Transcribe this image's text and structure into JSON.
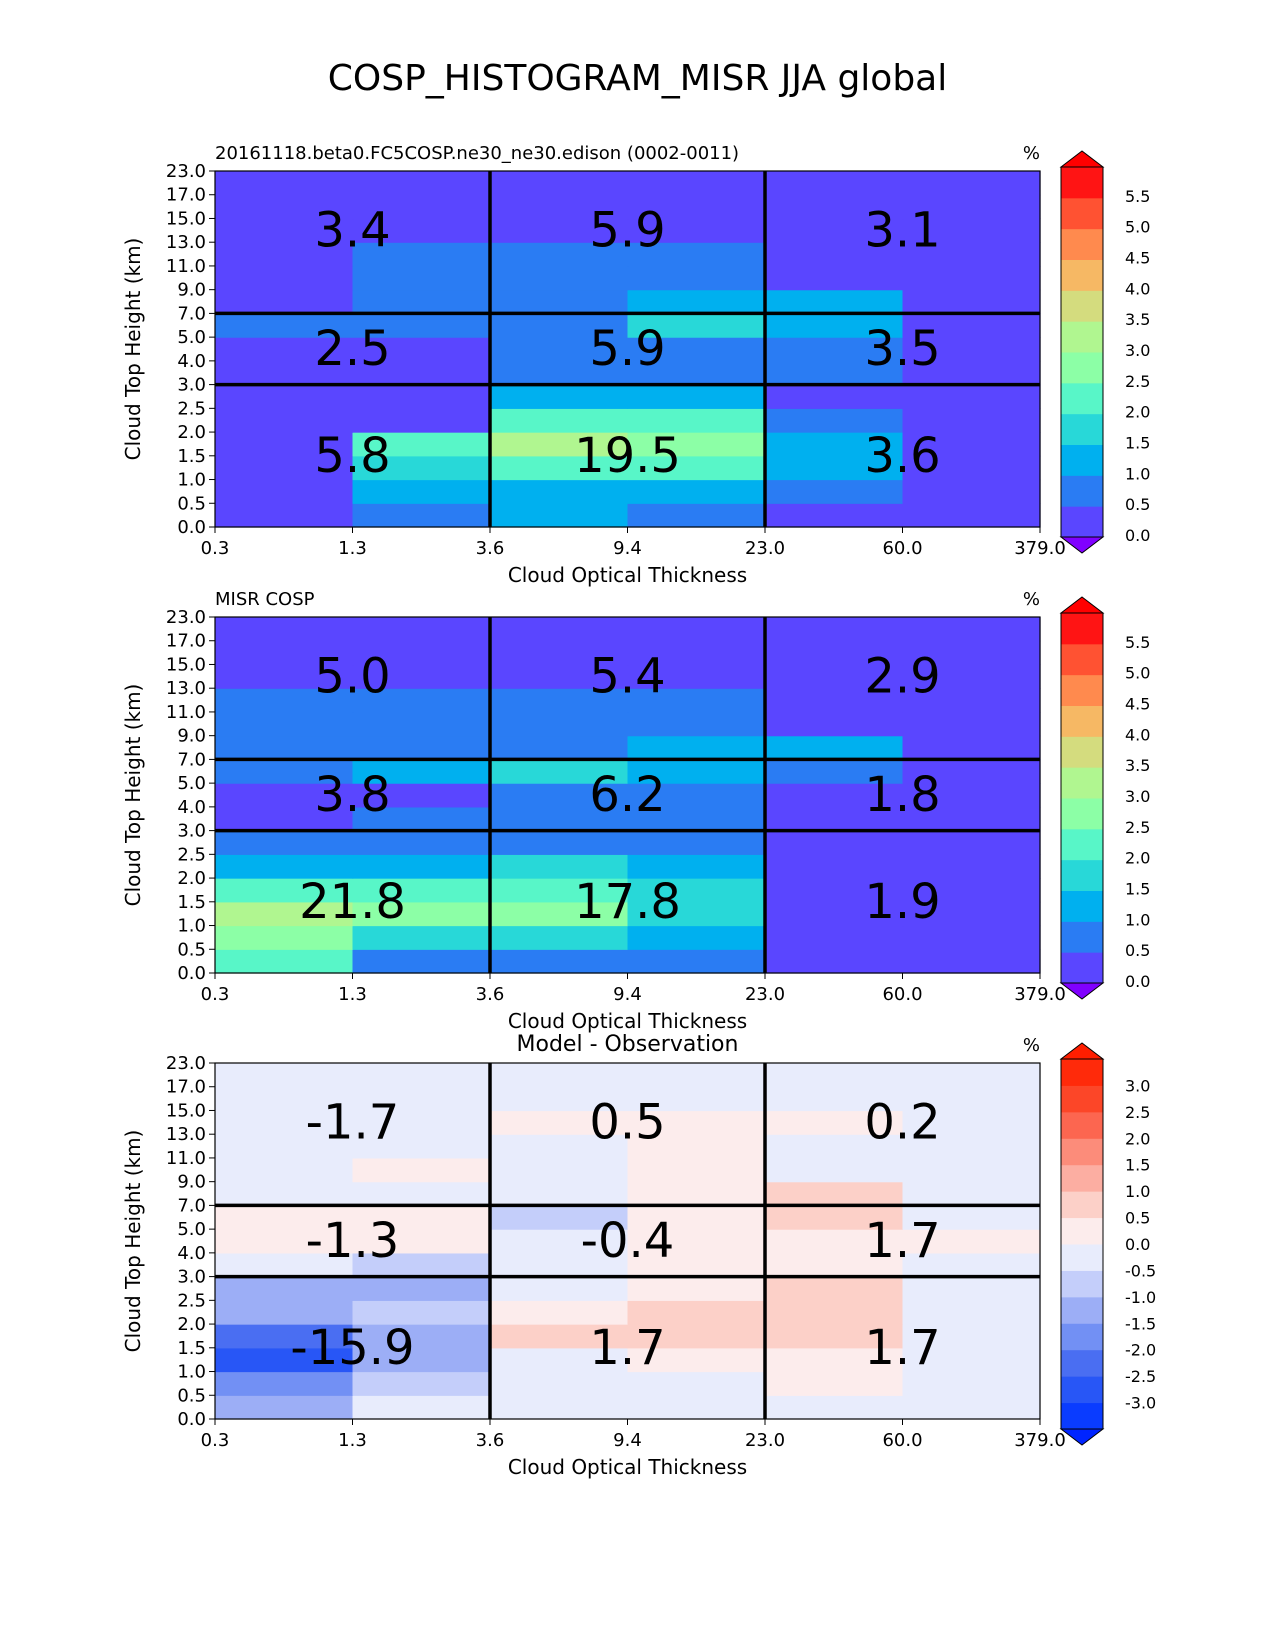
{
  "title": "COSP_HISTOGRAM_MISR JJA global",
  "chart_data": [
    {
      "type": "heatmap",
      "title": "",
      "left_title": "20161118.beta0.FC5COSP.ne30_ne30.edison (0002-0011)",
      "units": "%",
      "xlabel": "Cloud Optical Thickness",
      "ylabel": "Cloud Top Height (km)",
      "x_ticks": [
        "0.3",
        "1.3",
        "3.6",
        "9.4",
        "23.0",
        "60.0",
        "379.0"
      ],
      "y_ticks": [
        "0.0",
        "0.5",
        "1.0",
        "1.5",
        "2.0",
        "2.5",
        "3.0",
        "4.0",
        "5.0",
        "7.0",
        "9.0",
        "11.0",
        "13.0",
        "15.0",
        "17.0",
        "23.0"
      ],
      "values": [
        [
          0.2,
          0.8,
          1.2,
          0.8,
          0.2,
          0.2
        ],
        [
          0.2,
          1.3,
          1.3,
          1.3,
          0.8,
          0.2
        ],
        [
          0.2,
          1.7,
          2.3,
          2.3,
          1.3,
          0.2
        ],
        [
          0.2,
          2.2,
          3.3,
          2.7,
          1.3,
          0.2
        ],
        [
          0.2,
          0.2,
          2.3,
          2.3,
          0.8,
          0.2
        ],
        [
          0.2,
          0.2,
          1.3,
          1.3,
          0.2,
          0.2
        ],
        [
          0.2,
          0.2,
          0.8,
          0.8,
          0.8,
          0.2
        ],
        [
          0.2,
          0.2,
          0.8,
          0.8,
          0.8,
          0.2
        ],
        [
          0.8,
          0.8,
          0.8,
          1.8,
          1.3,
          0.2
        ],
        [
          0.2,
          0.8,
          0.8,
          1.3,
          1.3,
          0.2
        ],
        [
          0.2,
          0.8,
          0.8,
          0.8,
          0.2,
          0.2
        ],
        [
          0.2,
          0.8,
          0.8,
          0.8,
          0.2,
          0.2
        ],
        [
          0.2,
          0.2,
          0.2,
          0.2,
          0.2,
          0.2
        ],
        [
          0.2,
          0.2,
          0.2,
          0.2,
          0.2,
          0.2
        ],
        [
          0.2,
          0.2,
          0.2,
          0.2,
          0.2,
          0.2
        ]
      ],
      "box_values": [
        [
          "3.4",
          "5.9",
          "3.1"
        ],
        [
          "2.5",
          "5.9",
          "3.5"
        ],
        [
          "5.8",
          "19.5",
          "3.6"
        ]
      ],
      "colorbar": {
        "labels": [
          "0.0",
          "0.5",
          "1.0",
          "1.5",
          "2.0",
          "2.5",
          "3.0",
          "3.5",
          "4.0",
          "4.5",
          "5.0",
          "5.5"
        ],
        "colors": [
          "#5a46ff",
          "#2a7cf3",
          "#00b0ef",
          "#28d8d8",
          "#58f6c8",
          "#8cffa6",
          "#b0f690",
          "#d4dc7e",
          "#f6b864",
          "#ff8a4e",
          "#ff5232",
          "#ff1414"
        ],
        "under_color": "#8000ff",
        "over_color": "#ff0000"
      },
      "grid": "on"
    },
    {
      "type": "heatmap",
      "title": "",
      "left_title": "MISR COSP",
      "units": "%",
      "xlabel": "Cloud Optical Thickness",
      "ylabel": "Cloud Top Height (km)",
      "x_ticks": [
        "0.3",
        "1.3",
        "3.6",
        "9.4",
        "23.0",
        "60.0",
        "379.0"
      ],
      "y_ticks": [
        "0.0",
        "0.5",
        "1.0",
        "1.5",
        "2.0",
        "2.5",
        "3.0",
        "4.0",
        "5.0",
        "7.0",
        "9.0",
        "11.0",
        "13.0",
        "15.0",
        "17.0",
        "23.0"
      ],
      "values": [
        [
          2.2,
          0.8,
          0.8,
          0.8,
          0.2,
          0.2
        ],
        [
          2.7,
          1.8,
          1.8,
          1.3,
          0.2,
          0.2
        ],
        [
          3.3,
          2.7,
          2.7,
          1.8,
          0.2,
          0.2
        ],
        [
          2.2,
          2.2,
          2.3,
          1.8,
          0.2,
          0.2
        ],
        [
          1.3,
          1.3,
          1.8,
          1.3,
          0.2,
          0.2
        ],
        [
          0.8,
          0.8,
          0.8,
          0.8,
          0.2,
          0.2
        ],
        [
          0.2,
          0.8,
          0.8,
          0.8,
          0.2,
          0.2
        ],
        [
          0.2,
          0.2,
          0.8,
          0.8,
          0.2,
          0.2
        ],
        [
          0.8,
          1.3,
          1.8,
          1.3,
          0.8,
          0.2
        ],
        [
          0.8,
          0.8,
          0.8,
          1.3,
          1.3,
          0.2
        ],
        [
          0.8,
          0.8,
          0.8,
          0.8,
          0.2,
          0.2
        ],
        [
          0.8,
          0.8,
          0.8,
          0.8,
          0.2,
          0.2
        ],
        [
          0.2,
          0.2,
          0.2,
          0.2,
          0.2,
          0.2
        ],
        [
          0.2,
          0.2,
          0.2,
          0.2,
          0.2,
          0.2
        ],
        [
          0.2,
          0.2,
          0.2,
          0.2,
          0.2,
          0.2
        ]
      ],
      "box_values": [
        [
          "5.0",
          "5.4",
          "2.9"
        ],
        [
          "3.8",
          "6.2",
          "1.8"
        ],
        [
          "21.8",
          "17.8",
          "1.9"
        ]
      ],
      "colorbar": {
        "labels": [
          "0.0",
          "0.5",
          "1.0",
          "1.5",
          "2.0",
          "2.5",
          "3.0",
          "3.5",
          "4.0",
          "4.5",
          "5.0",
          "5.5"
        ],
        "colors": [
          "#5a46ff",
          "#2a7cf3",
          "#00b0ef",
          "#28d8d8",
          "#58f6c8",
          "#8cffa6",
          "#b0f690",
          "#d4dc7e",
          "#f6b864",
          "#ff8a4e",
          "#ff5232",
          "#ff1414"
        ],
        "under_color": "#8000ff",
        "over_color": "#ff0000"
      },
      "grid": "on"
    },
    {
      "type": "heatmap",
      "title": "Model - Observation",
      "left_title": "",
      "units": "%",
      "xlabel": "Cloud Optical Thickness",
      "ylabel": "Cloud Top Height (km)",
      "x_ticks": [
        "0.3",
        "1.3",
        "3.6",
        "9.4",
        "23.0",
        "60.0",
        "379.0"
      ],
      "y_ticks": [
        "0.0",
        "0.5",
        "1.0",
        "1.5",
        "2.0",
        "2.5",
        "3.0",
        "4.0",
        "5.0",
        "7.0",
        "9.0",
        "11.0",
        "13.0",
        "15.0",
        "17.0",
        "23.0"
      ],
      "values": [
        [
          -1.3,
          -0.1,
          -0.1,
          -0.1,
          -0.1,
          -0.1
        ],
        [
          -1.8,
          -0.6,
          -0.1,
          -0.1,
          0.1,
          -0.1
        ],
        [
          -2.8,
          -1.3,
          -0.1,
          0.1,
          0.1,
          -0.1
        ],
        [
          -2.2,
          -1.3,
          0.6,
          0.6,
          0.6,
          -0.1
        ],
        [
          -1.3,
          -0.6,
          0.1,
          0.6,
          0.6,
          -0.1
        ],
        [
          -1.3,
          -1.3,
          -0.1,
          0.1,
          0.6,
          -0.1
        ],
        [
          -0.1,
          -0.6,
          -0.1,
          0.1,
          0.1,
          -0.1
        ],
        [
          0.1,
          0.1,
          -0.1,
          0.1,
          0.1,
          0.1
        ],
        [
          0.1,
          0.1,
          -0.6,
          0.1,
          0.6,
          -0.1
        ],
        [
          -0.1,
          -0.1,
          -0.1,
          0.1,
          0.6,
          -0.1
        ],
        [
          -0.1,
          0.1,
          -0.1,
          0.1,
          -0.1,
          -0.1
        ],
        [
          -0.1,
          -0.1,
          -0.1,
          0.1,
          -0.1,
          -0.1
        ],
        [
          -0.1,
          -0.1,
          0.1,
          0.1,
          0.1,
          -0.1
        ],
        [
          -0.1,
          -0.1,
          -0.1,
          -0.1,
          -0.1,
          -0.1
        ],
        [
          -0.1,
          -0.1,
          -0.1,
          -0.1,
          -0.1,
          -0.1
        ]
      ],
      "box_values": [
        [
          "-1.7",
          "0.5",
          "0.2"
        ],
        [
          "-1.3",
          "-0.4",
          "1.7"
        ],
        [
          "-15.9",
          "1.7",
          "1.7"
        ]
      ],
      "colorbar": {
        "labels": [
          "-3.0",
          "-2.5",
          "-2.0",
          "-1.5",
          "-1.0",
          "-0.5",
          "0.0",
          "0.5",
          "1.0",
          "1.5",
          "2.0",
          "2.5",
          "3.0"
        ],
        "colors": [
          "#0a3cff",
          "#2856f6",
          "#4a6ef2",
          "#7290f4",
          "#9caef6",
          "#c4cefa",
          "#e8ecfc",
          "#fcecec",
          "#fcd0c8",
          "#fcaea2",
          "#fc8c7a",
          "#fc6650",
          "#fc4628",
          "#ff2a0a"
        ],
        "under_color": "#0024ff",
        "over_color": "#ff1e00"
      },
      "grid": "on"
    }
  ]
}
